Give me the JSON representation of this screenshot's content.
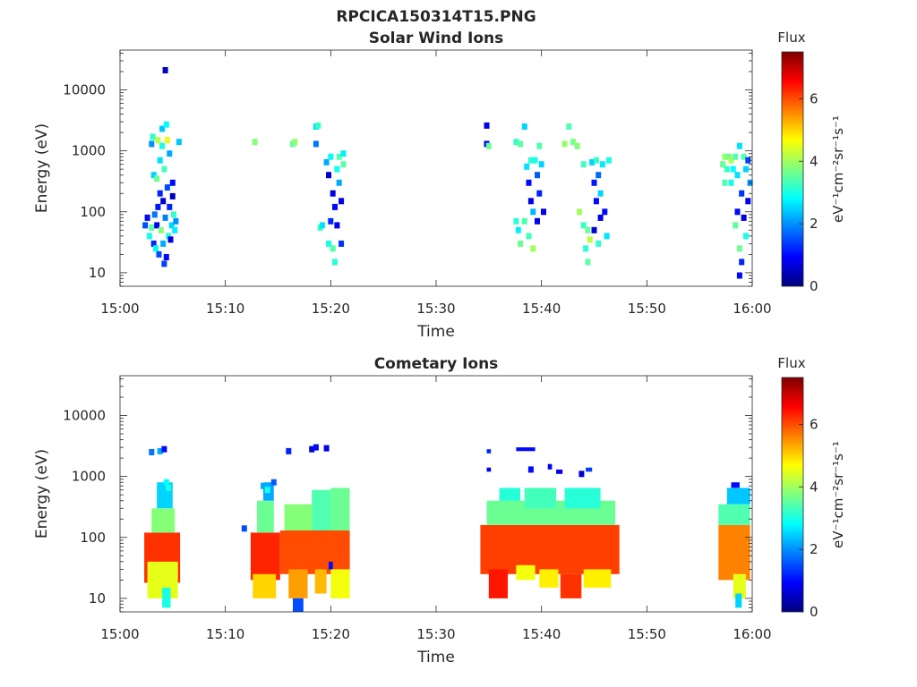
{
  "figure": {
    "title": "RPCICA150314T15.PNG"
  },
  "colormap": {
    "name": "jet",
    "stops": [
      "#00007f",
      "#0000ff",
      "#007fff",
      "#00ffff",
      "#7fff7f",
      "#ffff00",
      "#ff7f00",
      "#ff0000",
      "#7f0000"
    ]
  },
  "chart_data": [
    {
      "type": "heatmap",
      "title": "Solar Wind Ions",
      "xlabel": "Time",
      "ylabel": "Energy (eV)",
      "x_ticks": [
        "15:00",
        "15:10",
        "15:20",
        "15:30",
        "15:40",
        "15:50",
        "16:00"
      ],
      "y_ticks": [
        "10",
        "100",
        "1000",
        "10000"
      ],
      "y_scale": "log",
      "xlim_minutes": [
        0,
        60
      ],
      "ylim": [
        6,
        45000
      ],
      "colorbar": {
        "label": "Flux",
        "unit": "eV⁻¹cm⁻²sr⁻¹s⁻¹",
        "ticks": [
          "0",
          "2",
          "4",
          "6"
        ],
        "range": [
          0,
          7.5
        ]
      },
      "points": [
        [
          2.4,
          60,
          1.5
        ],
        [
          2.6,
          80,
          1.0
        ],
        [
          2.8,
          40,
          3.0
        ],
        [
          3.0,
          55,
          3.5
        ],
        [
          3.0,
          1300,
          2.0
        ],
        [
          3.1,
          1700,
          3.2
        ],
        [
          3.2,
          30,
          1.2
        ],
        [
          3.2,
          400,
          2.5
        ],
        [
          3.3,
          90,
          1.8
        ],
        [
          3.4,
          25,
          2.8
        ],
        [
          3.5,
          60,
          0.8
        ],
        [
          3.5,
          350,
          3.6
        ],
        [
          3.6,
          120,
          1.1
        ],
        [
          3.6,
          1500,
          4.2
        ],
        [
          3.7,
          20,
          1.5
        ],
        [
          3.8,
          700,
          2.6
        ],
        [
          3.8,
          200,
          1.2
        ],
        [
          3.9,
          50,
          3.8
        ],
        [
          4.0,
          1200,
          3.0
        ],
        [
          4.0,
          2300,
          2.4
        ],
        [
          4.1,
          30,
          2.2
        ],
        [
          4.1,
          150,
          0.6
        ],
        [
          4.2,
          14,
          1.4
        ],
        [
          4.2,
          500,
          3.3
        ],
        [
          4.3,
          80,
          1.9
        ],
        [
          4.3,
          21000,
          0.5
        ],
        [
          4.4,
          18,
          1.0
        ],
        [
          4.4,
          2700,
          2.8
        ],
        [
          4.5,
          1500,
          4.5
        ],
        [
          4.5,
          250,
          1.5
        ],
        [
          4.6,
          40,
          3.1
        ],
        [
          4.7,
          120,
          1.2
        ],
        [
          4.7,
          900,
          2.2
        ],
        [
          4.8,
          35,
          0.7
        ],
        [
          4.9,
          60,
          2.5
        ],
        [
          5.0,
          300,
          1.0
        ],
        [
          5.0,
          180,
          0.5
        ],
        [
          5.1,
          90,
          3.2
        ],
        [
          5.2,
          50,
          2.7
        ],
        [
          5.3,
          70,
          2.0
        ],
        [
          5.6,
          1400,
          2.4
        ],
        [
          12.8,
          1400,
          3.8
        ],
        [
          16.4,
          1300,
          3.5
        ],
        [
          16.6,
          1400,
          3.9
        ],
        [
          18.6,
          2500,
          2.6
        ],
        [
          18.6,
          1300,
          1.8
        ],
        [
          18.8,
          2600,
          3.2
        ],
        [
          19.0,
          55,
          3.3
        ],
        [
          19.2,
          60,
          2.6
        ],
        [
          19.6,
          650,
          2.2
        ],
        [
          19.8,
          400,
          0.6
        ],
        [
          19.8,
          30,
          3.0
        ],
        [
          20.0,
          800,
          2.8
        ],
        [
          20.0,
          70,
          1.2
        ],
        [
          20.2,
          200,
          0.7
        ],
        [
          20.2,
          25,
          3.4
        ],
        [
          20.4,
          120,
          1.0
        ],
        [
          20.4,
          15,
          3.1
        ],
        [
          20.6,
          60,
          0.8
        ],
        [
          20.6,
          500,
          2.9
        ],
        [
          20.8,
          300,
          2.2
        ],
        [
          20.8,
          800,
          3.4
        ],
        [
          21.0,
          150,
          0.8
        ],
        [
          21.0,
          30,
          1.3
        ],
        [
          21.2,
          600,
          3.5
        ],
        [
          21.2,
          900,
          2.7
        ],
        [
          34.8,
          2600,
          0.8
        ],
        [
          34.8,
          1300,
          1.0
        ],
        [
          35.0,
          1200,
          3.6
        ],
        [
          37.6,
          1400,
          3.2
        ],
        [
          37.6,
          70,
          3.1
        ],
        [
          37.8,
          50,
          2.7
        ],
        [
          38.0,
          1300,
          3.5
        ],
        [
          38.0,
          30,
          3.6
        ],
        [
          38.4,
          2500,
          2.5
        ],
        [
          38.4,
          70,
          3.4
        ],
        [
          38.6,
          550,
          2.6
        ],
        [
          38.8,
          300,
          1.0
        ],
        [
          38.8,
          40,
          3.3
        ],
        [
          39.0,
          150,
          0.7
        ],
        [
          39.0,
          700,
          3.1
        ],
        [
          39.2,
          100,
          2.3
        ],
        [
          39.2,
          25,
          4.0
        ],
        [
          39.4,
          700,
          3.0
        ],
        [
          39.6,
          400,
          1.6
        ],
        [
          39.6,
          70,
          0.8
        ],
        [
          39.8,
          200,
          1.2
        ],
        [
          39.8,
          1200,
          3.4
        ],
        [
          40.0,
          600,
          2.5
        ],
        [
          40.2,
          100,
          0.8
        ],
        [
          42.2,
          1300,
          3.9
        ],
        [
          42.6,
          2500,
          3.4
        ],
        [
          43.0,
          1400,
          3.7
        ],
        [
          43.4,
          1200,
          3.8
        ],
        [
          43.6,
          100,
          4.0
        ],
        [
          44.0,
          600,
          3.3
        ],
        [
          44.0,
          60,
          3.2
        ],
        [
          44.2,
          25,
          3.1
        ],
        [
          44.4,
          50,
          3.6
        ],
        [
          44.4,
          15,
          3.5
        ],
        [
          44.6,
          35,
          4.2
        ],
        [
          44.8,
          650,
          2.5
        ],
        [
          45.0,
          300,
          1.1
        ],
        [
          45.0,
          50,
          0.7
        ],
        [
          45.2,
          700,
          3.2
        ],
        [
          45.2,
          150,
          1.0
        ],
        [
          45.4,
          400,
          1.7
        ],
        [
          45.4,
          30,
          3.2
        ],
        [
          45.6,
          80,
          0.8
        ],
        [
          45.6,
          200,
          2.5
        ],
        [
          45.8,
          600,
          2.7
        ],
        [
          46.0,
          100,
          1.0
        ],
        [
          46.2,
          40,
          2.6
        ],
        [
          46.4,
          700,
          3.0
        ],
        [
          57.2,
          600,
          3.6
        ],
        [
          57.4,
          800,
          3.9
        ],
        [
          57.4,
          300,
          3.4
        ],
        [
          57.6,
          500,
          3.2
        ],
        [
          57.8,
          800,
          3.6
        ],
        [
          58.0,
          300,
          3.0
        ],
        [
          58.0,
          700,
          4.1
        ],
        [
          58.2,
          500,
          2.8
        ],
        [
          58.4,
          800,
          3.4
        ],
        [
          58.4,
          60,
          3.5
        ],
        [
          58.6,
          400,
          2.6
        ],
        [
          58.6,
          100,
          1.0
        ],
        [
          58.8,
          1200,
          2.6
        ],
        [
          58.8,
          25,
          3.6
        ],
        [
          58.8,
          9,
          1.0
        ],
        [
          59.0,
          200,
          1.3
        ],
        [
          59.0,
          15,
          1.2
        ],
        [
          59.2,
          80,
          0.7
        ],
        [
          59.2,
          800,
          3.4
        ],
        [
          59.4,
          500,
          2.5
        ],
        [
          59.4,
          40,
          3.0
        ],
        [
          59.6,
          150,
          0.8
        ],
        [
          59.6,
          700,
          1.4
        ],
        [
          59.8,
          300,
          2.0
        ]
      ]
    },
    {
      "type": "heatmap",
      "title": "Cometary Ions",
      "xlabel": "Time",
      "ylabel": "Energy (eV)",
      "x_ticks": [
        "15:00",
        "15:10",
        "15:20",
        "15:30",
        "15:40",
        "15:50",
        "16:00"
      ],
      "y_ticks": [
        "10",
        "100",
        "1000",
        "10000"
      ],
      "y_scale": "log",
      "xlim_minutes": [
        0,
        60
      ],
      "ylim": [
        6,
        45000
      ],
      "colorbar": {
        "label": "Flux",
        "unit": "eV⁻¹cm⁻²sr⁻¹s⁻¹",
        "ticks": [
          "0",
          "2",
          "4",
          "6"
        ],
        "range": [
          0,
          7.5
        ]
      },
      "blocks": [
        [
          2.3,
          5.7,
          18,
          120,
          6.2
        ],
        [
          2.6,
          5.5,
          10,
          40,
          4.5
        ],
        [
          3.0,
          5.2,
          120,
          300,
          3.8
        ],
        [
          3.5,
          5.0,
          300,
          800,
          2.5
        ],
        [
          4.0,
          4.8,
          7,
          15,
          3.0
        ],
        [
          12.4,
          15.2,
          20,
          120,
          6.3
        ],
        [
          12.6,
          14.8,
          10,
          25,
          5.0
        ],
        [
          13.0,
          14.6,
          120,
          400,
          3.6
        ],
        [
          13.6,
          14.6,
          400,
          800,
          2.2
        ],
        [
          15.2,
          21.8,
          25,
          130,
          6.0
        ],
        [
          16.0,
          17.8,
          10,
          30,
          5.4
        ],
        [
          18.5,
          19.6,
          12,
          30,
          5.2
        ],
        [
          20.0,
          21.8,
          10,
          30,
          4.6
        ],
        [
          15.6,
          18.2,
          130,
          350,
          3.8
        ],
        [
          18.2,
          20.0,
          130,
          600,
          3.4
        ],
        [
          20.0,
          21.8,
          130,
          650,
          3.6
        ],
        [
          16.4,
          17.4,
          6,
          10,
          1.5
        ],
        [
          19.8,
          20.2,
          30,
          40,
          1.0
        ],
        [
          34.2,
          47.4,
          25,
          160,
          6.1
        ],
        [
          35.0,
          36.8,
          10,
          30,
          6.4
        ],
        [
          37.6,
          39.4,
          20,
          35,
          4.6
        ],
        [
          39.8,
          41.6,
          15,
          30,
          4.8
        ],
        [
          41.8,
          43.8,
          10,
          25,
          6.2
        ],
        [
          44.0,
          46.6,
          15,
          30,
          4.8
        ],
        [
          34.8,
          47.0,
          160,
          400,
          3.6
        ],
        [
          36.0,
          38.0,
          400,
          650,
          3.1
        ],
        [
          38.4,
          41.4,
          300,
          650,
          3.3
        ],
        [
          42.2,
          45.6,
          300,
          650,
          3.1
        ],
        [
          34.8,
          35.2,
          1200,
          1400,
          0.8
        ],
        [
          34.8,
          35.2,
          2400,
          2800,
          1.2
        ],
        [
          37.6,
          39.4,
          2600,
          3000,
          1.0
        ],
        [
          40.6,
          41.0,
          1300,
          1600,
          0.9
        ],
        [
          41.4,
          42.0,
          1100,
          1300,
          0.8
        ],
        [
          44.2,
          44.8,
          1200,
          1400,
          1.4
        ],
        [
          56.8,
          59.8,
          20,
          160,
          5.6
        ],
        [
          58.2,
          59.4,
          10,
          25,
          4.5
        ],
        [
          58.4,
          59.0,
          7,
          12,
          2.5
        ],
        [
          56.8,
          59.8,
          160,
          350,
          3.4
        ],
        [
          57.6,
          59.8,
          350,
          650,
          2.4
        ],
        [
          58.0,
          58.8,
          650,
          800,
          1.0
        ]
      ],
      "points": [
        [
          3.0,
          2500,
          1.8
        ],
        [
          3.8,
          2600,
          2.2
        ],
        [
          4.2,
          2800,
          1.0
        ],
        [
          4.4,
          800,
          2.8
        ],
        [
          4.6,
          650,
          3.0
        ],
        [
          11.8,
          140,
          1.5
        ],
        [
          13.6,
          700,
          2.2
        ],
        [
          14.0,
          600,
          3.0
        ],
        [
          14.6,
          800,
          1.6
        ],
        [
          16.0,
          2600,
          1.2
        ],
        [
          18.2,
          2800,
          0.7
        ],
        [
          18.6,
          3000,
          1.0
        ],
        [
          19.6,
          2900,
          0.8
        ],
        [
          39.0,
          1300,
          1.0
        ],
        [
          43.8,
          1100,
          0.7
        ]
      ]
    }
  ]
}
